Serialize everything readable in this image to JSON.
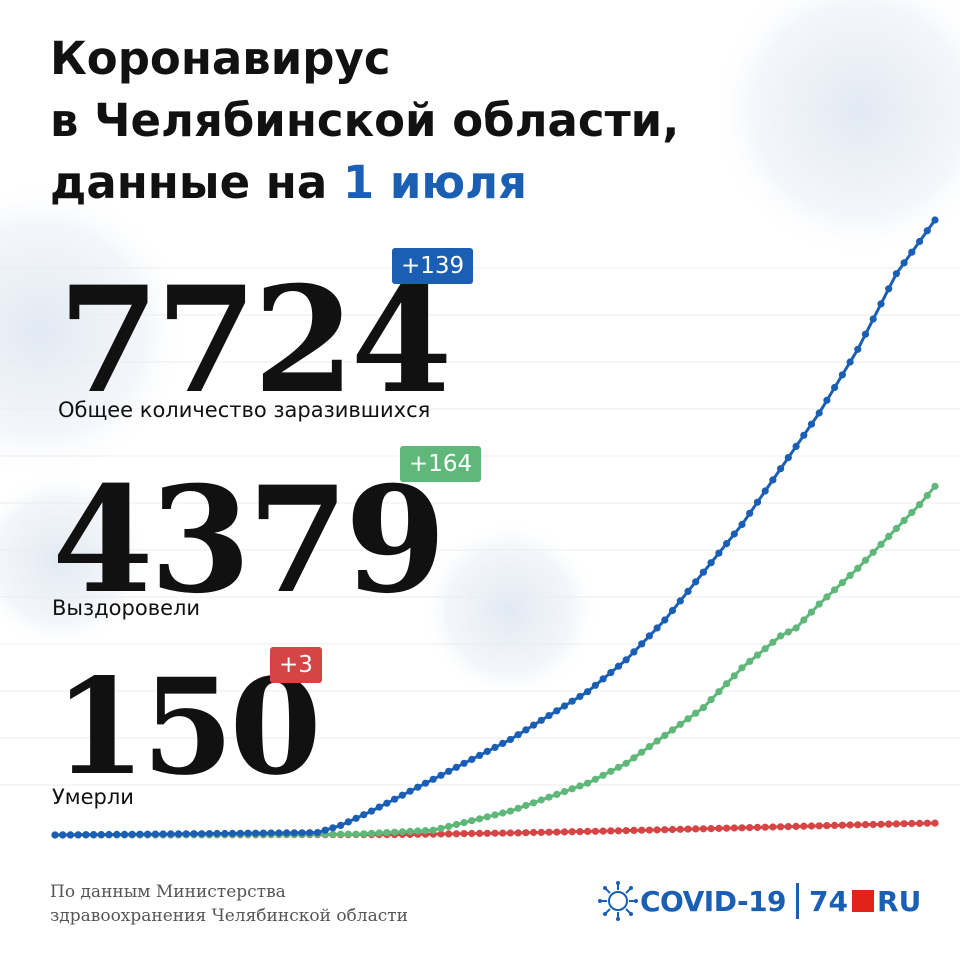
{
  "title": {
    "line1": "Коронавирус",
    "line2": "в Челябинской области,",
    "line3_prefix": "данные на ",
    "line3_date": "1 июля"
  },
  "stats": {
    "total": {
      "value": "7724",
      "delta": "+139",
      "label": "Общее количество заразившихся",
      "color": "#1a5fb4"
    },
    "recovered": {
      "value": "4379",
      "delta": "+164",
      "label": "Выздоровели",
      "color": "#5fb87a"
    },
    "deaths": {
      "value": "150",
      "delta": "+3",
      "label": "Умерли",
      "color": "#d64545"
    }
  },
  "source": {
    "line1": "По данным Министерства",
    "line2": "здравоохранения Челябинской области"
  },
  "brand": {
    "covid": "COVID-19",
    "num": "74",
    "ru": "RU",
    "virus_icon": "virus-icon"
  },
  "chart_data": {
    "type": "line",
    "x": {
      "start_day": 1,
      "end_day": 115,
      "note": "daily points, x axis unlabeled"
    },
    "ylim": [
      0,
      7724
    ],
    "grid": true,
    "series": [
      {
        "name": "Общее количество заразившихся",
        "color": "#1a5fb4",
        "key_values": [
          [
            1,
            0
          ],
          [
            35,
            30
          ],
          [
            38,
            120
          ],
          [
            42,
            300
          ],
          [
            50,
            700
          ],
          [
            60,
            1200
          ],
          [
            70,
            1800
          ],
          [
            75,
            2200
          ],
          [
            80,
            2700
          ],
          [
            85,
            3300
          ],
          [
            90,
            3900
          ],
          [
            95,
            4600
          ],
          [
            100,
            5300
          ],
          [
            105,
            6100
          ],
          [
            110,
            7050
          ],
          [
            115,
            7724
          ]
        ]
      },
      {
        "name": "Выздоровели",
        "color": "#5fb87a",
        "key_values": [
          [
            1,
            0
          ],
          [
            40,
            10
          ],
          [
            50,
            60
          ],
          [
            60,
            300
          ],
          [
            70,
            650
          ],
          [
            75,
            900
          ],
          [
            80,
            1250
          ],
          [
            85,
            1600
          ],
          [
            90,
            2100
          ],
          [
            95,
            2500
          ],
          [
            97,
            2600
          ],
          [
            100,
            2900
          ],
          [
            105,
            3350
          ],
          [
            110,
            3850
          ],
          [
            113,
            4150
          ],
          [
            115,
            4379
          ]
        ]
      },
      {
        "name": "Умерли",
        "color": "#d64545",
        "key_values": [
          [
            1,
            0
          ],
          [
            45,
            5
          ],
          [
            60,
            25
          ],
          [
            75,
            55
          ],
          [
            90,
            90
          ],
          [
            100,
            115
          ],
          [
            110,
            140
          ],
          [
            115,
            150
          ]
        ]
      }
    ]
  }
}
